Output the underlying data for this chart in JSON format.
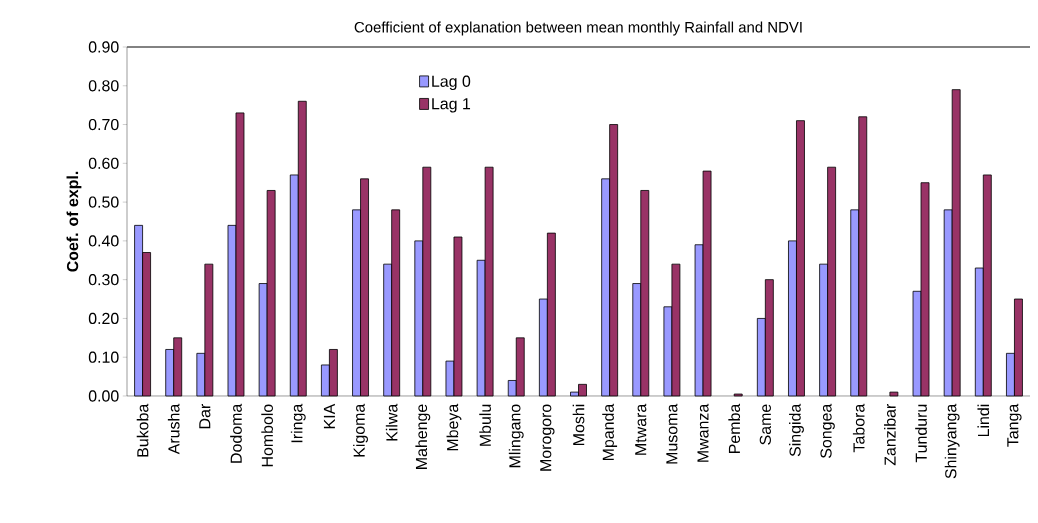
{
  "chart_data": {
    "type": "bar",
    "title": "Coefficient of explanation between mean monthly Rainfall and NDVI",
    "ylabel": "Coef. of expl.",
    "categories": [
      "Bukoba",
      "Arusha",
      "Dar",
      "Dodoma",
      "Hombolo",
      "Iringa",
      "KIA",
      "Kigoma",
      "Kilwa",
      "Mahenge",
      "Mbeya",
      "Mbulu",
      "Mlingano",
      "Morogoro",
      "Moshi",
      "Mpanda",
      "Mtwara",
      "Musoma",
      "Mwanza",
      "Pemba",
      "Same",
      "Singida",
      "Songea",
      "Tabora",
      "Zanzibar",
      "Tunduru",
      "Shinyanga",
      "Lindi",
      "Tanga"
    ],
    "series": [
      {
        "name": "Lag 0",
        "color": "#9999ff",
        "values": [
          0.44,
          0.12,
          0.11,
          0.44,
          0.29,
          0.57,
          0.08,
          0.48,
          0.34,
          0.4,
          0.09,
          0.35,
          0.04,
          0.25,
          0.01,
          0.56,
          0.29,
          0.23,
          0.39,
          null,
          0.2,
          0.4,
          0.34,
          0.48,
          null,
          0.27,
          0.48,
          0.33,
          0.11
        ]
      },
      {
        "name": "Lag 1",
        "color": "#993366",
        "values": [
          0.37,
          0.15,
          0.34,
          0.73,
          0.53,
          0.76,
          0.12,
          0.56,
          0.48,
          0.59,
          0.41,
          0.59,
          0.15,
          0.42,
          0.03,
          0.7,
          0.53,
          0.34,
          0.58,
          0.005,
          0.3,
          0.71,
          0.59,
          0.72,
          0.01,
          0.55,
          0.79,
          0.57,
          0.25
        ]
      }
    ],
    "ylim": [
      0,
      0.9
    ],
    "yticks": [
      {
        "value": 0,
        "label": "0.00"
      },
      {
        "value": 0.1,
        "label": "0.10"
      },
      {
        "value": 0.2,
        "label": "0.20"
      },
      {
        "value": 0.3,
        "label": "0.30"
      },
      {
        "value": 0.4,
        "label": "0.40"
      },
      {
        "value": 0.5,
        "label": "0.50"
      },
      {
        "value": 0.6,
        "label": "0.60"
      },
      {
        "value": 0.7,
        "label": "0.70"
      },
      {
        "value": 0.8,
        "label": "0.80"
      },
      {
        "value": 0.9,
        "label": "0.90"
      }
    ],
    "grid": false,
    "legend": "top"
  }
}
